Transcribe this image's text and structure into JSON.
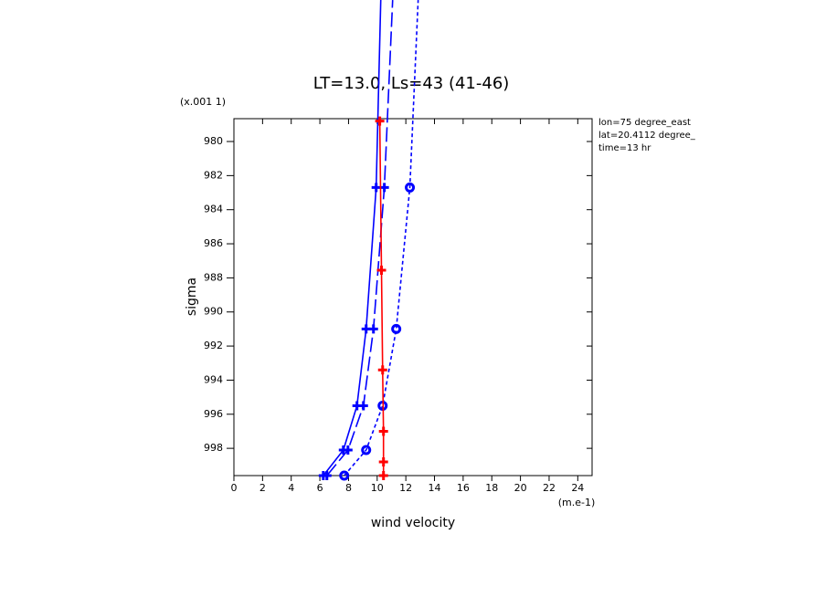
{
  "chart_data": {
    "type": "profile",
    "title": "LT=13.0, Ls=43 (41-46)",
    "x_label": "wind velocity",
    "x_units": "(m.e-1)",
    "y_label": "sigma",
    "y_units": "(x.001 1)",
    "annotations": [
      "lon=75 degree_east",
      "lat=20.4112 degree_",
      "time=13 hr"
    ],
    "xlim": [
      0,
      25
    ],
    "xticks": [
      0,
      2,
      4,
      6,
      8,
      10,
      12,
      14,
      16,
      18,
      20,
      22,
      24
    ],
    "ylim": [
      999.6,
      978.66
    ],
    "yticks": [
      980,
      982,
      984,
      986,
      988,
      990,
      992,
      994,
      996,
      998
    ],
    "series": [
      {
        "color": "#0000ff",
        "style": "solid",
        "marker": "plus",
        "x": [
          6.24,
          7.64,
          8.59,
          9.23,
          9.93,
          10.25
        ],
        "y": [
          999.6,
          998.1,
          995.5,
          991.0,
          982.7,
          971.7
        ]
      },
      {
        "color": "#0000ff",
        "style": "long-dash",
        "marker": "plus",
        "x": [
          6.49,
          7.96,
          9.04,
          9.74,
          10.5,
          11.08
        ],
        "y": [
          999.6,
          998.1,
          995.5,
          991.0,
          982.7,
          971.7
        ]
      },
      {
        "color": "#0000ff",
        "style": "short-dash",
        "marker": "circle",
        "x": [
          7.7,
          9.23,
          10.38,
          11.33,
          12.28,
          12.86
        ],
        "y": [
          999.6,
          998.1,
          995.5,
          991.0,
          982.7,
          971.7
        ]
      },
      {
        "color": "#ff0000",
        "style": "solid",
        "marker": "plus",
        "x": [
          10.44,
          10.44,
          10.44,
          10.38,
          10.3,
          10.18
        ],
        "y": [
          999.6,
          998.8,
          997.0,
          993.4,
          987.55,
          978.8
        ]
      }
    ]
  }
}
